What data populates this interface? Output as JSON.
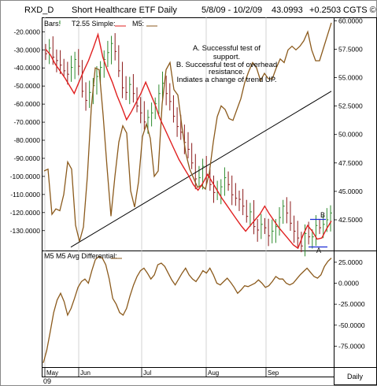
{
  "header": {
    "symbol": "RXD_D",
    "name": "Short Healthcare ETF Daily",
    "date_range": "5/8/09 - 10/2/09",
    "last": "43.0993",
    "change": "+0.2503",
    "copyright": "CGTS ©"
  },
  "legend": {
    "bars": "Bars:",
    "t255": "T2.55 Simple:",
    "m5": "M5:",
    "m5_diff": "M5 M5 Avg Differential:"
  },
  "annotation": {
    "lines": [
      "A. Successful test of",
      "support.",
      "B.  Successful test of overhead",
      "resistance.",
      "Indiates a change of trend UP."
    ]
  },
  "markers": {
    "a": "A",
    "b": "B"
  },
  "footer": {
    "period": "Daily",
    "year": "09"
  },
  "colors": {
    "bar_up": "#2e8b2e",
    "bar_down": "#8b1a1a",
    "t255_line": "#e02020",
    "m5_line": "#8b5a1c",
    "trendline": "#000000",
    "marker_line": "#1a2bd6",
    "grid": "#c8c8c8"
  },
  "chart_data": [
    {
      "type": "line",
      "title": "Short Healthcare ETF Daily",
      "x_ticks": [
        "May",
        "Jun",
        "Jul",
        "Aug",
        "Sep"
      ],
      "right_axis": {
        "ticks": [
          "60.0000",
          "57.5000",
          "55.0000",
          "52.5000",
          "50.0000",
          "47.5000",
          "45.0000",
          "42.5000"
        ],
        "ylim": [
          39.8,
          60.3
        ]
      },
      "left_axis": {
        "ticks": [
          "-20.0000",
          "-30.0000",
          "-40.0000",
          "-50.0000",
          "-60.0000",
          "-70.0000",
          "-80.0000",
          "-90.0000",
          "-100.0000",
          "-110.0000",
          "-120.0000",
          "-130.0000"
        ],
        "ylim": [
          -141,
          -12
        ]
      },
      "price_closes": [
        57.1,
        57.6,
        56.8,
        56.5,
        56.1,
        55.6,
        55.3,
        55.9,
        56.6,
        56.0,
        53.8,
        53.0,
        53.7,
        54.3,
        55.1,
        55.9,
        56.6,
        57.2,
        58.0,
        57.3,
        55.6,
        54.1,
        53.7,
        54.4,
        53.6,
        52.5,
        51.9,
        51.1,
        51.5,
        51.9,
        52.7,
        53.6,
        54.5,
        53.6,
        52.9,
        51.6,
        50.7,
        50.2,
        49.3,
        48.7,
        47.5,
        46.1,
        46.2,
        47.2,
        46.4,
        45.6,
        44.9,
        44.9,
        45.4,
        46.2,
        45.6,
        44.7,
        44.4,
        44.3,
        43.7,
        42.8,
        43.2,
        41.9,
        41.6,
        42.1,
        41.8,
        41.1,
        41.5,
        41.9,
        42.7,
        43.7,
        43.1,
        42.2,
        41.5,
        40.9,
        40.2,
        41.3,
        41.0,
        41.0,
        42.0,
        41.8,
        42.1,
        42.5,
        43.1
      ],
      "t255_ma": [
        57.5,
        57.0,
        56.2,
        55.6,
        55.0,
        54.3,
        53.6,
        54.6,
        55.6,
        56.5,
        57.6,
        58.8,
        56.8,
        55.6,
        54.6,
        53.4,
        52.4,
        51.3,
        52.0,
        52.8,
        53.6,
        54.6,
        53.6,
        52.6,
        51.4,
        50.5,
        49.6,
        48.7,
        47.8,
        47.1,
        46.4,
        45.6,
        45.1,
        45.7,
        46.5,
        45.8,
        45.1,
        44.4,
        43.8,
        43.2,
        42.6,
        42.0,
        41.5,
        42.0,
        42.5,
        43.0,
        43.7,
        43.0,
        42.4,
        41.8,
        41.3,
        40.8,
        40.3,
        40.0,
        41.1,
        42.0,
        41.5,
        40.8,
        40.9,
        41.7,
        42.4
      ],
      "price_trendline": {
        "from": [
          "May",
          40.1
        ],
        "to": [
          "Oct 2",
          53.8
        ]
      },
      "m5_oscillator": [
        -97,
        -96,
        -121,
        -118,
        -119,
        -110,
        -92,
        -96,
        -127,
        -136,
        -128,
        -100,
        -62,
        -40,
        -41,
        -66,
        -95,
        -122,
        -100,
        -81,
        -72,
        -76,
        -108,
        -117,
        -103,
        -78,
        -71,
        -79,
        -100,
        -97,
        -60,
        -41,
        -37,
        -52,
        -55,
        -72,
        -87,
        -96,
        -101,
        -106,
        -105,
        -107,
        -98,
        -81,
        -67,
        -61,
        -63,
        -68,
        -69,
        -63,
        -57,
        -48,
        -42,
        -37,
        -40,
        -47,
        -43,
        -46,
        -46,
        -40,
        -35,
        -37,
        -30,
        -28,
        -30,
        -28,
        -25,
        -20,
        -30,
        -36,
        -36,
        -29,
        -22,
        -15
      ],
      "annotations": [
        "A",
        "B"
      ]
    },
    {
      "type": "line",
      "title": "M5 M5 Avg Differential:",
      "x_ticks": [
        "May",
        "Jun",
        "Jul",
        "Aug",
        "Sep"
      ],
      "y_ticks": [
        "25.0000",
        "0.0000",
        "-25.0000",
        "-50.0000",
        "-75.0000"
      ],
      "ylim": [
        -100,
        39
      ],
      "values": [
        -95,
        -80,
        -58,
        -35,
        -20,
        -12,
        -22,
        -38,
        -30,
        -18,
        -5,
        2,
        5,
        0,
        15,
        28,
        32,
        30,
        22,
        5,
        -18,
        -25,
        -35,
        -38,
        -30,
        -15,
        -2,
        8,
        15,
        18,
        12,
        5,
        10,
        22,
        24,
        20,
        12,
        4,
        -2,
        5,
        12,
        18,
        10,
        5,
        2,
        8,
        15,
        12,
        18,
        10,
        0,
        -2,
        2,
        6,
        1,
        -5,
        -12,
        -8,
        -3,
        -4,
        -2,
        0,
        4,
        0,
        -5,
        -3,
        2,
        8,
        5,
        5,
        0,
        -2,
        0,
        5,
        10,
        14,
        18,
        13,
        8,
        6,
        10,
        20,
        26,
        30
      ]
    }
  ]
}
